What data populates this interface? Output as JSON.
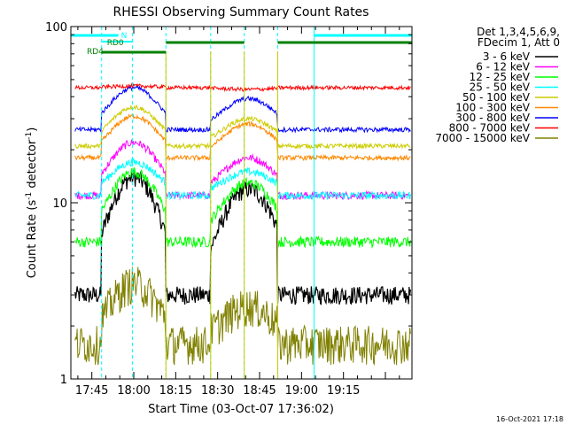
{
  "chart_data": {
    "type": "line",
    "title": "RHESSI Observing Summary Count Rates",
    "xlabel": "Start Time (03-Oct-07 17:36:02)",
    "ylabel_main": "Count Rate (s",
    "ylabel_sup": "-1",
    "ylabel_mid": " detector",
    "ylabel_tail": ")",
    "y_scale": "log",
    "ylim": [
      1,
      100
    ],
    "xlim_minutes": [
      37.5,
      159.5
    ],
    "x_ticks": [
      {
        "label": "17:45",
        "minutes": 45
      },
      {
        "label": "18:00",
        "minutes": 60
      },
      {
        "label": "18:15",
        "minutes": 75
      },
      {
        "label": "18:30",
        "minutes": 90
      },
      {
        "label": "18:45",
        "minutes": 105
      },
      {
        "label": "19:00",
        "minutes": 120
      },
      {
        "label": "19:15",
        "minutes": 135
      }
    ],
    "y_ticks": [
      {
        "label": "100",
        "value": 100
      },
      {
        "label": "10",
        "value": 10
      },
      {
        "label": "1",
        "value": 1
      }
    ],
    "legend_header": [
      "Det 1,3,4,5,6,9,",
      "FDecim 1, Att 0"
    ],
    "legend_placement": "outside-right",
    "footer_date": "16-Oct-2021 17:18",
    "series": [
      {
        "name": "3 - 6 keV",
        "color": "#000000",
        "base": 3.0,
        "peak1": 14.0,
        "peak2": 12.0,
        "noise": 0.12
      },
      {
        "name": "6 - 12 keV",
        "color": "#ff00ff",
        "base": 11.0,
        "peak1": 22.0,
        "peak2": 18.0,
        "noise": 0.05
      },
      {
        "name": "12 - 25 keV",
        "color": "#00ff00",
        "base": 6.0,
        "peak1": 15.0,
        "peak2": 13.0,
        "noise": 0.07
      },
      {
        "name": "25 - 50 keV",
        "color": "#00ffff",
        "base": 11.0,
        "peak1": 17.0,
        "peak2": 15.0,
        "noise": 0.05
      },
      {
        "name": "50 - 100 keV",
        "color": "#cccc00",
        "base": 21.0,
        "peak1": 35.0,
        "peak2": 30.0,
        "noise": 0.03
      },
      {
        "name": "100 - 300 keV",
        "color": "#ff8800",
        "base": 18.0,
        "peak1": 31.0,
        "peak2": 28.0,
        "noise": 0.03
      },
      {
        "name": "300 - 800 keV",
        "color": "#0000ff",
        "base": 26.0,
        "peak1": 45.0,
        "peak2": 39.0,
        "noise": 0.03
      },
      {
        "name": "800 - 7000 keV",
        "color": "#ff0000",
        "base": 45.0,
        "peak1": 46.0,
        "peak2": 44.0,
        "noise": 0.025
      },
      {
        "name": "7000 - 15000 keV",
        "color": "#808000",
        "base": 1.6,
        "peak1": 3.5,
        "peak2": 2.6,
        "noise": 0.25
      }
    ],
    "night_periods_minutes": [
      [
        37.5,
        48.5
      ],
      [
        48.5,
        59.5
      ],
      [
        71.5,
        87.5
      ],
      [
        99.5,
        111.5
      ],
      [
        124.5,
        159.5
      ]
    ],
    "bars": {
      "saa_N": {
        "label": "N",
        "color": "#00ffff",
        "ranges": [
          [
            37.5,
            54.5
          ],
          [
            124.5,
            159.5
          ]
        ]
      },
      "rd0": {
        "label": "RD0",
        "color": "#00ffff",
        "ranges": [
          [
            48.5,
            59.5
          ]
        ]
      },
      "rd4": {
        "label": "RD4",
        "color": "#008000",
        "ranges": [
          [
            48.5,
            71.5
          ]
        ]
      },
      "green_top": {
        "color": "#008000",
        "ranges": [
          [
            71.5,
            87.5
          ],
          [
            87.5,
            99.5
          ],
          [
            111.5,
            159.5
          ]
        ]
      }
    }
  }
}
